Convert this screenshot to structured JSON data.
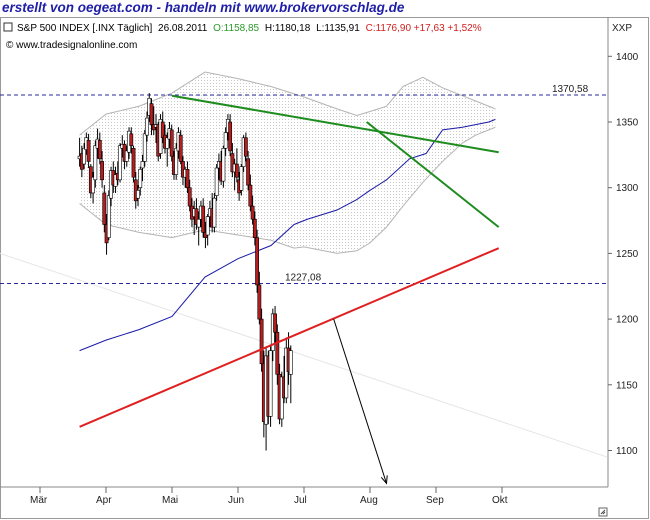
{
  "watermark": "erstellt von oegeat.com - handeln mit www.brokervorschlag.de",
  "colors": {
    "bull": "#ffffff",
    "bear": "#b41e1e",
    "wick": "#000000",
    "band": "#b4b4b4",
    "ma": "#1a1aa8",
    "green_trend": "#1e8c1e",
    "red_trend": "#e02020",
    "level_line": "#2a2a9a",
    "header_open": "#2a9a2a",
    "header_change": "#d02020"
  },
  "header": {
    "title": "S&P 500 INDEX [.INX Täglich]",
    "date": "26.08.2011",
    "open": "O:1158,85",
    "high": "H:1180,18",
    "low": "L:1135,91",
    "close_change": "C:1176,90 +17,63 +1,52%",
    "site": "© www.tradesignalonline.com",
    "axis_unit": "XXP"
  },
  "chart_data": {
    "type": "candlestick",
    "x_axis_labels": [
      "Mär",
      "Apr",
      "Mai",
      "Jun",
      "Jul",
      "Aug",
      "Sep",
      "Okt"
    ],
    "y_ticks": [
      1100,
      1150,
      1200,
      1250,
      1300,
      1350,
      1400
    ],
    "ylim": [
      1060,
      1440
    ],
    "levels": [
      {
        "value": 1370.58,
        "label": "1370,58"
      },
      {
        "value": 1227.08,
        "label": "1227,08"
      }
    ],
    "trend_lines": [
      {
        "color": "green",
        "from": {
          "month": 4.0,
          "value": 1370
        },
        "to": {
          "month": 8.95,
          "value": 1327
        }
      },
      {
        "color": "green",
        "from": {
          "month": 6.95,
          "value": 1350
        },
        "to": {
          "month": 8.95,
          "value": 1270
        }
      },
      {
        "color": "red",
        "from": {
          "month": 2.6,
          "value": 1118
        },
        "to": {
          "month": 8.95,
          "value": 1254
        }
      }
    ],
    "projection_arrow": {
      "from": {
        "month": 6.45,
        "value": 1200
      },
      "to": {
        "month": 7.25,
        "value": 1075
      }
    },
    "moving_average": [
      [
        2.6,
        1176
      ],
      [
        3.0,
        1184
      ],
      [
        3.5,
        1192
      ],
      [
        4.0,
        1202
      ],
      [
        4.5,
        1232
      ],
      [
        5.0,
        1246
      ],
      [
        5.5,
        1256
      ],
      [
        5.85,
        1272
      ],
      [
        6.05,
        1276
      ],
      [
        6.5,
        1283
      ],
      [
        6.8,
        1291
      ],
      [
        7.0,
        1298
      ],
      [
        7.25,
        1306
      ],
      [
        7.6,
        1322
      ],
      [
        7.85,
        1326
      ],
      [
        8.1,
        1344
      ],
      [
        8.4,
        1346
      ],
      [
        8.6,
        1348
      ],
      [
        8.8,
        1350
      ],
      [
        8.9,
        1352
      ]
    ],
    "bollinger_upper": [
      [
        2.6,
        1340
      ],
      [
        3.0,
        1356
      ],
      [
        3.5,
        1362
      ],
      [
        4.0,
        1372
      ],
      [
        4.5,
        1388
      ],
      [
        5.0,
        1383
      ],
      [
        5.5,
        1377
      ],
      [
        6.0,
        1369
      ],
      [
        6.5,
        1360
      ],
      [
        6.8,
        1355
      ],
      [
        7.0,
        1358
      ],
      [
        7.25,
        1362
      ],
      [
        7.5,
        1377
      ],
      [
        7.8,
        1384
      ],
      [
        8.1,
        1376
      ],
      [
        8.4,
        1370
      ],
      [
        8.7,
        1364
      ],
      [
        8.9,
        1360
      ]
    ],
    "bollinger_lower": [
      [
        2.6,
        1288
      ],
      [
        3.0,
        1272
      ],
      [
        3.5,
        1266
      ],
      [
        4.0,
        1262
      ],
      [
        4.5,
        1268
      ],
      [
        5.0,
        1264
      ],
      [
        5.5,
        1260
      ],
      [
        5.85,
        1254
      ],
      [
        6.0,
        1255
      ],
      [
        6.5,
        1250
      ],
      [
        6.8,
        1252
      ],
      [
        7.0,
        1258
      ],
      [
        7.25,
        1270
      ],
      [
        7.5,
        1286
      ],
      [
        7.8,
        1304
      ],
      [
        8.1,
        1320
      ],
      [
        8.4,
        1334
      ],
      [
        8.6,
        1340
      ],
      [
        8.8,
        1344
      ],
      [
        8.9,
        1346
      ]
    ],
    "candles": [
      [
        1322,
        1338,
        1316,
        1324
      ],
      [
        1326,
        1332,
        1308,
        1314
      ],
      [
        1318,
        1334,
        1314,
        1330
      ],
      [
        1329,
        1342,
        1325,
        1338
      ],
      [
        1336,
        1341,
        1315,
        1320
      ],
      [
        1316,
        1318,
        1292,
        1296
      ],
      [
        1296,
        1312,
        1288,
        1308
      ],
      [
        1306,
        1336,
        1300,
        1332
      ],
      [
        1330,
        1345,
        1322,
        1337
      ],
      [
        1336,
        1342,
        1318,
        1322
      ],
      [
        1320,
        1328,
        1300,
        1306
      ],
      [
        1296,
        1302,
        1266,
        1272
      ],
      [
        1272,
        1280,
        1249,
        1258
      ],
      [
        1262,
        1298,
        1260,
        1294
      ],
      [
        1292,
        1316,
        1286,
        1313
      ],
      [
        1313,
        1320,
        1296,
        1302
      ],
      [
        1301,
        1316,
        1296,
        1310
      ],
      [
        1311,
        1320,
        1302,
        1306
      ],
      [
        1306,
        1334,
        1304,
        1332
      ],
      [
        1330,
        1340,
        1323,
        1333
      ],
      [
        1333,
        1336,
        1314,
        1320
      ],
      [
        1320,
        1332,
        1316,
        1328
      ],
      [
        1327,
        1346,
        1322,
        1343
      ],
      [
        1341,
        1346,
        1326,
        1332
      ],
      [
        1330,
        1332,
        1304,
        1308
      ],
      [
        1306,
        1312,
        1284,
        1290
      ],
      [
        1292,
        1302,
        1286,
        1298
      ],
      [
        1300,
        1316,
        1294,
        1314
      ],
      [
        1315,
        1325,
        1305,
        1320
      ],
      [
        1320,
        1344,
        1316,
        1341
      ],
      [
        1340,
        1358,
        1335,
        1353
      ],
      [
        1355,
        1372,
        1350,
        1368
      ],
      [
        1364,
        1368,
        1340,
        1348
      ],
      [
        1348,
        1362,
        1340,
        1344
      ],
      [
        1346,
        1356,
        1334,
        1348
      ],
      [
        1348,
        1350,
        1320,
        1324
      ],
      [
        1326,
        1356,
        1322,
        1352
      ],
      [
        1350,
        1358,
        1334,
        1338
      ],
      [
        1340,
        1348,
        1326,
        1330
      ],
      [
        1330,
        1342,
        1316,
        1338
      ],
      [
        1337,
        1350,
        1330,
        1345
      ],
      [
        1344,
        1348,
        1320,
        1324
      ],
      [
        1324,
        1328,
        1306,
        1310
      ],
      [
        1310,
        1334,
        1306,
        1330
      ],
      [
        1328,
        1346,
        1322,
        1342
      ],
      [
        1340,
        1344,
        1318,
        1320
      ],
      [
        1320,
        1324,
        1302,
        1308
      ],
      [
        1308,
        1316,
        1300,
        1314
      ],
      [
        1314,
        1320,
        1296,
        1300
      ],
      [
        1300,
        1306,
        1282,
        1286
      ],
      [
        1286,
        1292,
        1270,
        1276
      ],
      [
        1278,
        1290,
        1264,
        1284
      ],
      [
        1284,
        1292,
        1268,
        1272
      ],
      [
        1270,
        1282,
        1256,
        1276
      ],
      [
        1276,
        1290,
        1270,
        1286
      ],
      [
        1286,
        1292,
        1262,
        1266
      ],
      [
        1266,
        1274,
        1254,
        1262
      ],
      [
        1264,
        1280,
        1256,
        1278
      ],
      [
        1278,
        1290,
        1270,
        1284
      ],
      [
        1284,
        1296,
        1266,
        1270
      ],
      [
        1270,
        1296,
        1266,
        1292
      ],
      [
        1294,
        1318,
        1290,
        1315
      ],
      [
        1315,
        1326,
        1306,
        1320
      ],
      [
        1320,
        1328,
        1302,
        1305
      ],
      [
        1305,
        1332,
        1300,
        1330
      ],
      [
        1330,
        1346,
        1324,
        1342
      ],
      [
        1342,
        1356,
        1336,
        1352
      ],
      [
        1350,
        1356,
        1324,
        1328
      ],
      [
        1326,
        1334,
        1308,
        1312
      ],
      [
        1312,
        1322,
        1298,
        1318
      ],
      [
        1318,
        1330,
        1304,
        1308
      ],
      [
        1306,
        1312,
        1290,
        1296
      ],
      [
        1298,
        1318,
        1294,
        1316
      ],
      [
        1316,
        1340,
        1312,
        1338
      ],
      [
        1338,
        1342,
        1320,
        1324
      ],
      [
        1322,
        1328,
        1298,
        1302
      ],
      [
        1302,
        1310,
        1282,
        1286
      ],
      [
        1286,
        1294,
        1272,
        1276
      ],
      [
        1276,
        1282,
        1256,
        1262
      ],
      [
        1262,
        1268,
        1220,
        1226
      ],
      [
        1226,
        1236,
        1196,
        1200
      ],
      [
        1200,
        1208,
        1160,
        1166
      ],
      [
        1166,
        1176,
        1110,
        1122
      ],
      [
        1120,
        1178,
        1100,
        1172
      ],
      [
        1172,
        1176,
        1120,
        1126
      ],
      [
        1126,
        1180,
        1118,
        1176
      ],
      [
        1176,
        1208,
        1168,
        1204
      ],
      [
        1204,
        1210,
        1182,
        1190
      ],
      [
        1190,
        1196,
        1150,
        1158
      ],
      [
        1158,
        1166,
        1120,
        1124
      ],
      [
        1124,
        1160,
        1118,
        1156
      ],
      [
        1156,
        1172,
        1136,
        1140
      ],
      [
        1140,
        1186,
        1136,
        1178
      ],
      [
        1178,
        1190,
        1150,
        1160
      ],
      [
        1158,
        1180,
        1136,
        1176
      ]
    ]
  }
}
